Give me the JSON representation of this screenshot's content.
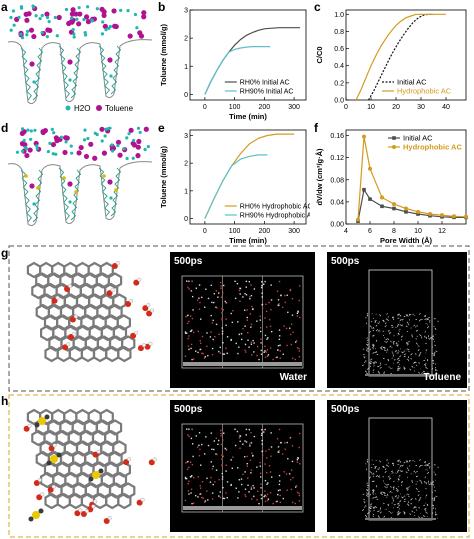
{
  "labels": {
    "a": "a",
    "b": "b",
    "c": "c",
    "d": "d",
    "e": "e",
    "f": "f",
    "g": "g",
    "h": "h"
  },
  "schematic": {
    "legend_water": "H2O",
    "legend_toluene": "Toluene",
    "colors": {
      "water": "#1fb7b0",
      "toluene": "#b0138f",
      "pore": "#2a9d8f",
      "defect": "#e0b400"
    }
  },
  "sims": {
    "g_water_time": "500ps",
    "g_water_label": "Water",
    "g_tol_time": "500ps",
    "g_tol_label": "Toluene",
    "h_water_time": "500ps",
    "h_tol_time": "500ps"
  },
  "colors": {
    "gray": "#4d4d4d",
    "cyan": "#5bc0c8",
    "orange": "#d39b1f",
    "black": "#111111",
    "g_border": "#555555",
    "h_border": "#d7a324"
  },
  "chart_data": [
    {
      "id": "b",
      "type": "line",
      "xlabel": "Time (min)",
      "ylabel": "Toluene (mmol/g)",
      "xlim": [
        -50,
        340
      ],
      "ylim": [
        -0.2,
        3.0
      ],
      "xticks": [
        0,
        100,
        200,
        300
      ],
      "yticks": [
        0,
        1,
        2,
        3
      ],
      "series": [
        {
          "name": "RH0%   Initial AC",
          "x": [
            0,
            20,
            40,
            60,
            80,
            100,
            120,
            140,
            160,
            180,
            200,
            220,
            250,
            280,
            320
          ],
          "y": [
            0,
            0.45,
            0.85,
            1.2,
            1.5,
            1.75,
            1.95,
            2.1,
            2.2,
            2.28,
            2.33,
            2.35,
            2.37,
            2.37,
            2.37
          ]
        },
        {
          "name": "RH90% Initial AC",
          "x": [
            0,
            20,
            40,
            60,
            80,
            100,
            120,
            140,
            160,
            180,
            200,
            220
          ],
          "y": [
            0,
            0.45,
            0.85,
            1.2,
            1.5,
            1.6,
            1.65,
            1.68,
            1.7,
            1.7,
            1.7,
            1.7
          ]
        }
      ]
    },
    {
      "id": "c",
      "type": "line",
      "ylabel": "C/C0",
      "xlabel": "",
      "xlim": [
        0,
        48
      ],
      "ylim": [
        0,
        1.05
      ],
      "xticks": [
        0,
        10,
        20,
        30,
        40
      ],
      "yticks": [
        0.0,
        0.2,
        0.4,
        0.6,
        0.8,
        1.0
      ],
      "series": [
        {
          "name": "Initial AC",
          "x": [
            9,
            11,
            13,
            15,
            17,
            19,
            21,
            23,
            25,
            27,
            29,
            31,
            33,
            35
          ],
          "y": [
            0,
            0.1,
            0.22,
            0.34,
            0.46,
            0.57,
            0.67,
            0.76,
            0.84,
            0.91,
            0.96,
            0.99,
            1.0,
            1.0
          ]
        },
        {
          "name": "Hydrophobic AC",
          "x": [
            4,
            6,
            8,
            10,
            12,
            14,
            16,
            18,
            20,
            22,
            24,
            26,
            28,
            30,
            34,
            40
          ],
          "y": [
            0,
            0.12,
            0.26,
            0.4,
            0.52,
            0.63,
            0.72,
            0.8,
            0.87,
            0.92,
            0.96,
            0.98,
            1.0,
            1.0,
            1.0,
            1.0
          ]
        }
      ]
    },
    {
      "id": "e",
      "type": "line",
      "xlabel": "Time (min)",
      "ylabel": "Toluene (mmol/g)",
      "xlim": [
        -50,
        340
      ],
      "ylim": [
        -0.2,
        3.2
      ],
      "xticks": [
        0,
        100,
        200,
        300
      ],
      "yticks": [
        0,
        1,
        2,
        3
      ],
      "series": [
        {
          "name": "RH0%   Hydrophobic AC",
          "x": [
            0,
            30,
            60,
            90,
            120,
            150,
            180,
            210,
            240,
            270,
            300
          ],
          "y": [
            0,
            0.7,
            1.35,
            1.9,
            2.35,
            2.7,
            2.9,
            3.0,
            3.05,
            3.05,
            3.05
          ]
        },
        {
          "name": "RH90% Hydrophobic AC",
          "x": [
            0,
            30,
            60,
            90,
            120,
            150,
            180,
            210
          ],
          "y": [
            0,
            0.7,
            1.35,
            1.9,
            2.15,
            2.25,
            2.3,
            2.3
          ]
        }
      ]
    },
    {
      "id": "f",
      "type": "line",
      "xlabel": "Pore Width (Å)",
      "ylabel": "dV/dw (cm³/g·Å)",
      "xlim": [
        4,
        14
      ],
      "ylim": [
        0,
        0.17
      ],
      "xticks": [
        4,
        6,
        8,
        10,
        12
      ],
      "yticks": [
        0.0,
        0.04,
        0.08,
        0.12,
        0.16
      ],
      "series": [
        {
          "name": "Initial AC",
          "x": [
            5.0,
            5.5,
            6.0,
            7.0,
            8.0,
            9.0,
            10.0,
            11.0,
            12.0,
            13.0,
            14.0
          ],
          "y": [
            0.005,
            0.062,
            0.045,
            0.032,
            0.028,
            0.022,
            0.018,
            0.015,
            0.013,
            0.012,
            0.012
          ]
        },
        {
          "name": "Hydrophobic AC",
          "x": [
            5.0,
            5.5,
            6.0,
            7.0,
            8.0,
            9.0,
            10.0,
            11.0,
            12.0,
            13.0,
            14.0
          ],
          "y": [
            0.008,
            0.158,
            0.1,
            0.048,
            0.036,
            0.028,
            0.022,
            0.018,
            0.016,
            0.014,
            0.013
          ]
        }
      ]
    }
  ]
}
